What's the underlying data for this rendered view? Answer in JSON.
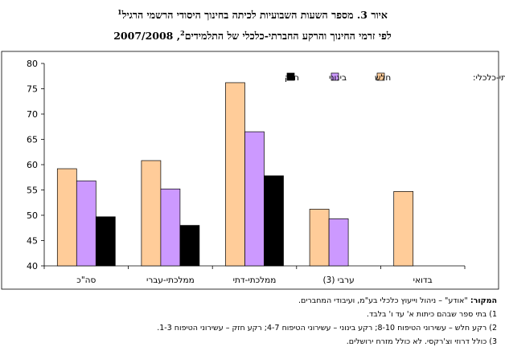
{
  "title_line1": "איור 3. מספר השעות השבועיות לכיתה בחינוך היסודי הרשמי הרגיל",
  "title_line1_sup": "1",
  "title_line2": "לפי זרמי החינוך והרקע החברתי-כלכלי של התלמידים",
  "title_line2_sup": "2",
  "title_line2_year": ", 2007/2008",
  "chart_data": {
    "type": "bar",
    "categories": [
      "סה\"כ",
      "ממלכתי-עברי",
      "ממלכתי-דתי",
      "ערבי (3)",
      "בדואי"
    ],
    "series": [
      {
        "name": "חלש",
        "color": "#FFCC99",
        "values": [
          59.2,
          60.8,
          76.2,
          51.2,
          54.7
        ]
      },
      {
        "name": "בינוני",
        "color": "#CC99FF",
        "values": [
          56.8,
          55.2,
          66.5,
          49.3,
          null
        ]
      },
      {
        "name": "חזק",
        "color": "#000000",
        "values": [
          49.7,
          48.0,
          57.8,
          null,
          null
        ]
      }
    ],
    "yticks": [
      40,
      45,
      50,
      55,
      60,
      65,
      70,
      75,
      80
    ],
    "ylim": [
      40,
      80
    ],
    "legend_title": "רקע חברתי-כלכלי:",
    "legend_position": "top-right",
    "grid": false
  },
  "notes": {
    "source_label": "המקור:",
    "source_text": "\"אודע\" – ניהול וייעוץ כלכלי בע\"מ, ועיבודי המחברים.",
    "note1": "1) בתי ספר שבהם כיתות א' עד ו' בלבד.",
    "note2": "2) רקע חלש – עשירוני הטיפוח 8-10; רקע בינוני – עשירוני הטיפוח 4-7; רקע חזק – עשירוני הטיפוח 1-3.",
    "note3": "3) כולל דרוזי וצ'רקסי. לא כולל מזרח ירושלים."
  }
}
